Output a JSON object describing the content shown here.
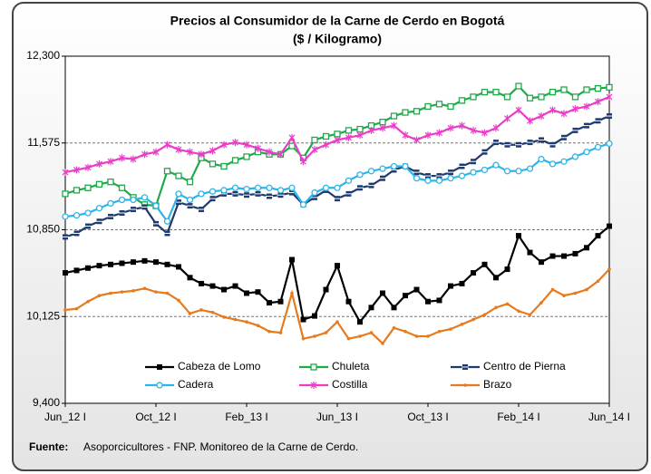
{
  "chart_data": {
    "type": "line",
    "title": "Precios al Consumidor de la Carne de Cerdo en Bogotá",
    "subtitle": "($ / Kilogramo)",
    "categories": [
      "Jun_12 I",
      null,
      null,
      null,
      null,
      null,
      null,
      null,
      "Oct_12 I",
      null,
      null,
      null,
      null,
      null,
      null,
      null,
      "Feb_13 I",
      null,
      null,
      null,
      null,
      null,
      null,
      null,
      "Jun_13 I",
      null,
      null,
      null,
      null,
      null,
      null,
      null,
      "Oct_13 I",
      null,
      null,
      null,
      null,
      null,
      null,
      null,
      "Feb_14 I",
      null,
      null,
      null,
      null,
      null,
      null,
      null,
      "Jun_14 I"
    ],
    "ylim": [
      9400,
      12300
    ],
    "yticks": [
      {
        "value": 9400,
        "label": "9,400"
      },
      {
        "value": 10125,
        "label": "10,125"
      },
      {
        "value": 10850,
        "label": "10,850"
      },
      {
        "value": 11575,
        "label": "11,575"
      },
      {
        "value": 12300,
        "label": "12,300"
      }
    ],
    "grid": true,
    "legend": "bottom",
    "series": [
      {
        "name": "Cabeza de Lomo",
        "color": "#000000",
        "marker": "square-filled",
        "values": [
          10490,
          10510,
          10530,
          10550,
          10560,
          10570,
          10580,
          10590,
          10580,
          10560,
          10540,
          10450,
          10400,
          10380,
          10350,
          10380,
          10320,
          10330,
          10240,
          10250,
          10600,
          10100,
          10130,
          10350,
          10550,
          10250,
          10080,
          10200,
          10320,
          10200,
          10300,
          10350,
          10250,
          10260,
          10380,
          10400,
          10490,
          10560,
          10450,
          10520,
          10800,
          10660,
          10580,
          10630,
          10630,
          10650,
          10700,
          10800,
          10880
        ]
      },
      {
        "name": "Chuleta",
        "color": "#1faa4a",
        "marker": "square-open",
        "values": [
          11150,
          11180,
          11200,
          11230,
          11250,
          11200,
          11120,
          11060,
          11050,
          11340,
          11300,
          11250,
          11450,
          11400,
          11380,
          11430,
          11460,
          11500,
          11480,
          11480,
          11550,
          11450,
          11600,
          11630,
          11650,
          11680,
          11690,
          11720,
          11750,
          11800,
          11830,
          11840,
          11880,
          11900,
          11880,
          11930,
          11960,
          12000,
          12000,
          11960,
          12050,
          11950,
          11960,
          12000,
          12020,
          11960,
          12020,
          12030,
          12040
        ]
      },
      {
        "name": "Centro de Pierna",
        "color": "#1f3a6e",
        "marker": "cross",
        "values": [
          10790,
          10820,
          10880,
          10920,
          10960,
          10990,
          11020,
          11040,
          10900,
          10820,
          11080,
          11050,
          11020,
          11110,
          11150,
          11150,
          11140,
          11150,
          11130,
          11140,
          11160,
          11060,
          11120,
          11180,
          11110,
          11150,
          11200,
          11220,
          11280,
          11350,
          11380,
          11330,
          11300,
          11300,
          11330,
          11380,
          11420,
          11500,
          11580,
          11560,
          11560,
          11580,
          11600,
          11560,
          11620,
          11680,
          11720,
          11760,
          11800
        ]
      },
      {
        "name": "Cadera",
        "color": "#2eb4e8",
        "marker": "circle-open",
        "values": [
          10960,
          10970,
          10990,
          11030,
          11070,
          11100,
          11100,
          11120,
          11050,
          10920,
          11150,
          11100,
          11150,
          11170,
          11180,
          11200,
          11190,
          11200,
          11200,
          11180,
          11200,
          11060,
          11160,
          11200,
          11200,
          11260,
          11310,
          11340,
          11360,
          11380,
          11380,
          11280,
          11260,
          11260,
          11280,
          11300,
          11330,
          11350,
          11390,
          11340,
          11340,
          11360,
          11440,
          11400,
          11420,
          11460,
          11500,
          11540,
          11570
        ]
      },
      {
        "name": "Costilla",
        "color": "#e83ec8",
        "marker": "star",
        "values": [
          11330,
          11350,
          11370,
          11400,
          11420,
          11450,
          11440,
          11480,
          11500,
          11560,
          11520,
          11500,
          11480,
          11510,
          11560,
          11580,
          11560,
          11530,
          11500,
          11480,
          11620,
          11420,
          11520,
          11560,
          11600,
          11620,
          11640,
          11680,
          11700,
          11720,
          11640,
          11600,
          11640,
          11660,
          11700,
          11720,
          11680,
          11660,
          11700,
          11780,
          11850,
          11760,
          11800,
          11850,
          11820,
          11860,
          11880,
          11920,
          11960
        ]
      },
      {
        "name": "Brazo",
        "color": "#e87a1e",
        "marker": "dot",
        "values": [
          10180,
          10190,
          10250,
          10300,
          10320,
          10330,
          10340,
          10360,
          10330,
          10320,
          10260,
          10150,
          10180,
          10160,
          10120,
          10100,
          10080,
          10050,
          10000,
          9990,
          10320,
          9940,
          9960,
          9990,
          10080,
          9940,
          9960,
          9990,
          9900,
          10030,
          10000,
          9960,
          9960,
          10000,
          10020,
          10060,
          10100,
          10140,
          10200,
          10230,
          10170,
          10140,
          10240,
          10350,
          10300,
          10320,
          10350,
          10420,
          10520
        ]
      }
    ],
    "source_label": "Fuente:",
    "source": "Asoporcicultores - FNP. Monitoreo de la Carne de Cerdo."
  }
}
